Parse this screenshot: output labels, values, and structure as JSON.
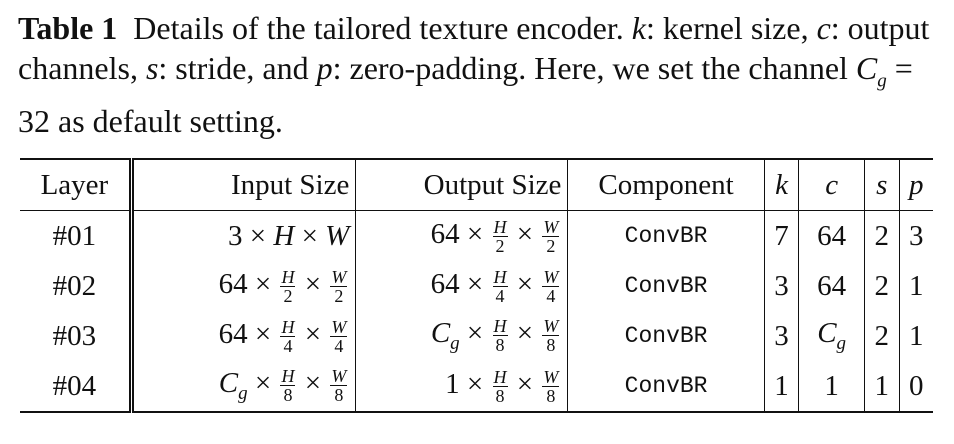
{
  "caption": {
    "label": "Table 1",
    "part1": "Details of the tailored texture encoder.",
    "k_sym": "k",
    "k_desc": ": kernel size,",
    "c_sym": "c",
    "c_desc": ": output channels,",
    "s_sym": "s",
    "s_desc": ": stride, and",
    "p_sym": "p",
    "p_desc": ": zero-padding. Here, we set the channel",
    "cg_sym": "C",
    "cg_sub": "g",
    "cg_eq": " = 32",
    "tail": "as default setting."
  },
  "table": {
    "headers": {
      "layer": "Layer",
      "input": "Input Size",
      "output": "Output Size",
      "component": "Component",
      "k": "k",
      "c": "c",
      "s": "s",
      "p": "p"
    },
    "rows": [
      {
        "layer": "#01",
        "in_a": "3 ×",
        "in_h": "H",
        "in_x": "×",
        "in_w": "W",
        "out_a": "64 ×",
        "out_hn": "H",
        "out_hd": "2",
        "out_x": "×",
        "out_wn": "W",
        "out_wd": "2",
        "component": "ConvBR",
        "k": "7",
        "c": "64",
        "s": "2",
        "p": "3"
      },
      {
        "layer": "#02",
        "in_a": "64 ×",
        "in_hn": "H",
        "in_hd": "2",
        "in_x": "×",
        "in_wn": "W",
        "in_wd": "2",
        "out_a": "64 ×",
        "out_hn": "H",
        "out_hd": "4",
        "out_x": "×",
        "out_wn": "W",
        "out_wd": "4",
        "component": "ConvBR",
        "k": "3",
        "c": "64",
        "s": "2",
        "p": "1"
      },
      {
        "layer": "#03",
        "in_a": "64 ×",
        "in_hn": "H",
        "in_hd": "4",
        "in_x": "×",
        "in_wn": "W",
        "in_wd": "4",
        "out_c": "C",
        "out_g": "g",
        "out_a": "×",
        "out_hn": "H",
        "out_hd": "8",
        "out_x": "×",
        "out_wn": "W",
        "out_wd": "8",
        "component": "ConvBR",
        "k": "3",
        "c_c": "C",
        "c_g": "g",
        "s": "2",
        "p": "1"
      },
      {
        "layer": "#04",
        "in_c": "C",
        "in_g": "g",
        "in_a": "×",
        "in_hn": "H",
        "in_hd": "8",
        "in_x": "×",
        "in_wn": "W",
        "in_wd": "8",
        "out_a": "1 ×",
        "out_hn": "H",
        "out_hd": "8",
        "out_x": "×",
        "out_wn": "W",
        "out_wd": "8",
        "component": "ConvBR",
        "k": "1",
        "c": "1",
        "s": "1",
        "p": "0"
      }
    ]
  }
}
